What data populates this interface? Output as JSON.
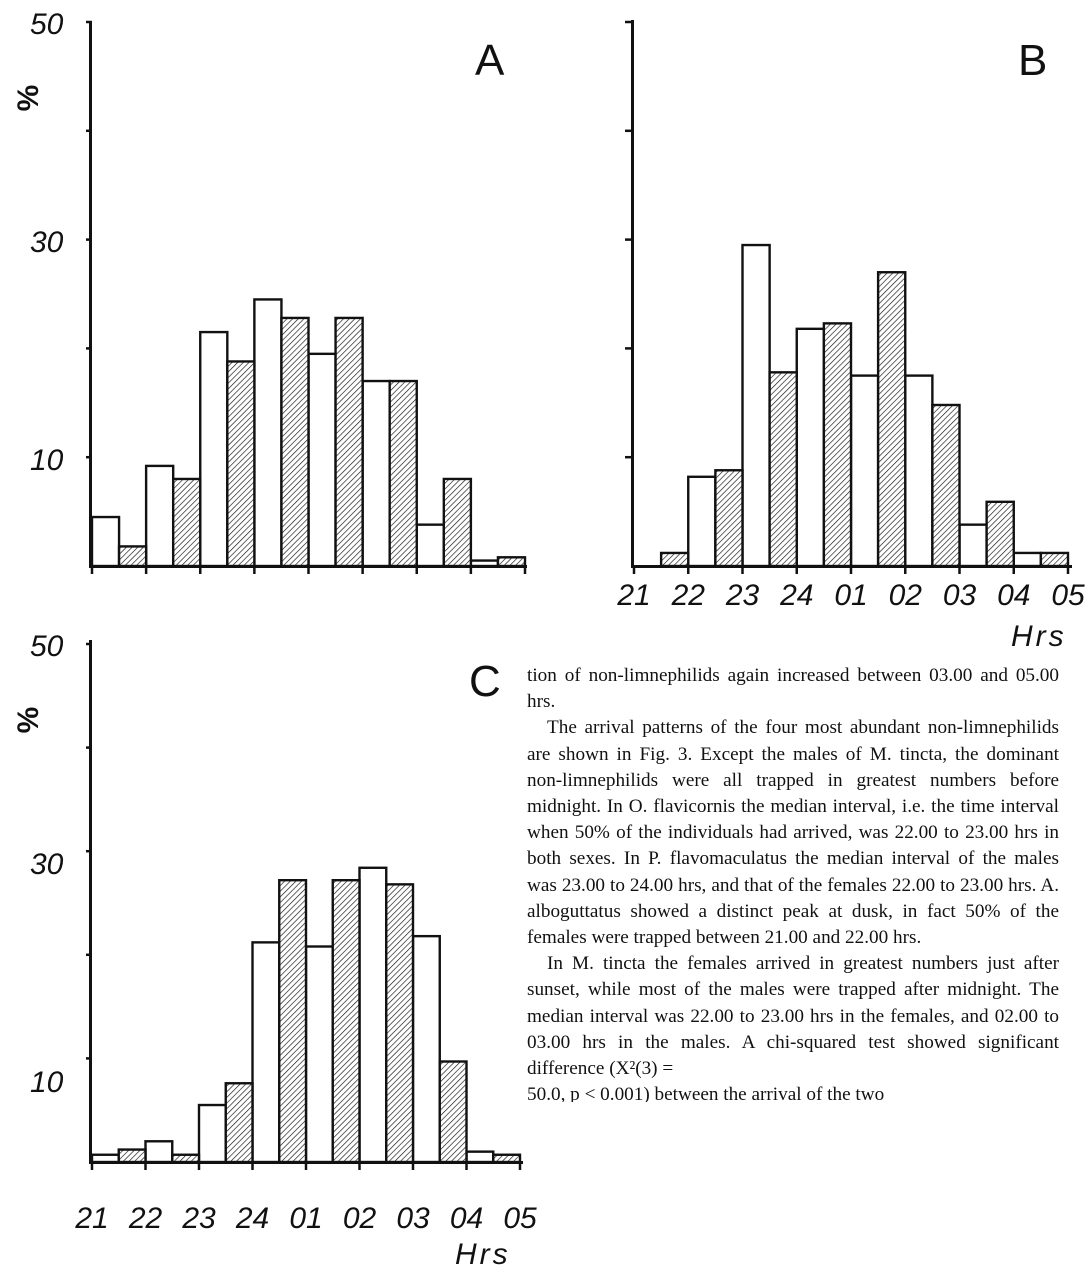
{
  "figure": {
    "y_axis_label": "%",
    "x_axis_label": "Hrs",
    "tick_labels_y": [
      "50",
      "30",
      "10"
    ],
    "tick_labels_x": [
      "21",
      "22",
      "23",
      "24",
      "01",
      "02",
      "03",
      "04",
      "05"
    ],
    "pattern_note": "open bars and hatched bars alternate within each hour interval"
  },
  "chart_data": [
    {
      "type": "bar",
      "panel": "A",
      "ylabel": "%",
      "ylim": [
        0,
        50
      ],
      "yticks": [
        10,
        30,
        50
      ],
      "xticks": [
        "21",
        "22",
        "23",
        "24",
        "01",
        "02",
        "03",
        "04",
        "05"
      ],
      "series": [
        {
          "name": "open",
          "start_hours": [
            0,
            1,
            2,
            3,
            4,
            5,
            6,
            7
          ],
          "values": [
            4.5,
            9.2,
            21.5,
            24.5,
            19.5,
            17.0,
            3.8,
            0.5
          ]
        },
        {
          "name": "hatched",
          "start_hours": [
            0.5,
            1.5,
            2.5,
            3.5,
            4.5,
            5.5,
            6.5,
            7.5
          ],
          "values": [
            1.8,
            8.0,
            18.8,
            22.8,
            22.8,
            17.0,
            8.0,
            0.8
          ]
        }
      ]
    },
    {
      "type": "bar",
      "panel": "B",
      "ylabel": "",
      "ylim": [
        0,
        50
      ],
      "xlabel": "Hrs",
      "xticks": [
        "21",
        "22",
        "23",
        "24",
        "01",
        "02",
        "03",
        "04",
        "05"
      ],
      "series": [
        {
          "name": "open",
          "start_hours": [
            0,
            1,
            2,
            3,
            4,
            5,
            6,
            7
          ],
          "values": [
            0,
            8.2,
            29.5,
            21.8,
            17.5,
            17.5,
            3.8,
            1.2
          ]
        },
        {
          "name": "hatched",
          "start_hours": [
            0.5,
            1.5,
            2.5,
            3.5,
            4.5,
            5.5,
            6.5,
            7.5
          ],
          "values": [
            1.2,
            8.8,
            17.8,
            22.3,
            27.0,
            14.8,
            5.9,
            1.2
          ]
        }
      ]
    },
    {
      "type": "bar",
      "panel": "C",
      "ylabel": "%",
      "ylim": [
        0,
        50
      ],
      "yticks": [
        10,
        30,
        50
      ],
      "xlabel": "Hrs",
      "xticks": [
        "21",
        "22",
        "23",
        "24",
        "01",
        "02",
        "03",
        "04",
        "05"
      ],
      "series": [
        {
          "name": "open",
          "start_hours": [
            0,
            1,
            2,
            3,
            4,
            5,
            6,
            7
          ],
          "values": [
            0.7,
            2.0,
            5.5,
            21.2,
            20.8,
            28.4,
            21.8,
            1.0
          ]
        },
        {
          "name": "hatched",
          "start_hours": [
            0.5,
            1.5,
            2.5,
            3.5,
            4.5,
            5.5,
            6.5,
            7.5
          ],
          "values": [
            1.2,
            0.7,
            7.6,
            27.2,
            27.2,
            26.8,
            9.7,
            0.7
          ]
        }
      ]
    }
  ],
  "paper_text": {
    "p1": "tion of non-limnephilids again increased between 03.00 and 05.00 hrs.",
    "p2": "The arrival patterns of the four most abundant non-limnephilids are shown in Fig. 3. Except the males of M. tincta, the dominant non-limnephilids were all trapped in greatest numbers before midnight. In O. flavicornis the median interval, i.e. the time interval when 50% of the individuals had arrived, was 22.00 to 23.00 hrs in both sexes. In P. flavomaculatus the median interval of the males was 23.00 to 24.00 hrs, and that of the females 22.00 to 23.00 hrs. A. alboguttatus showed a distinct peak at dusk, in fact 50% of the females were trapped between 21.00 and 22.00 hrs.",
    "p3": "In M. tincta the females arrived in greatest numbers just after sunset, while most of the males were trapped after midnight. The median interval was 22.00 to 23.00 hrs in the females, and 02.00 to 03.00 hrs in the males. A chi-squared test showed significant difference (X²(3) =",
    "p3_cutoff": "50.0, p < 0.001) between the arrival of the two"
  }
}
